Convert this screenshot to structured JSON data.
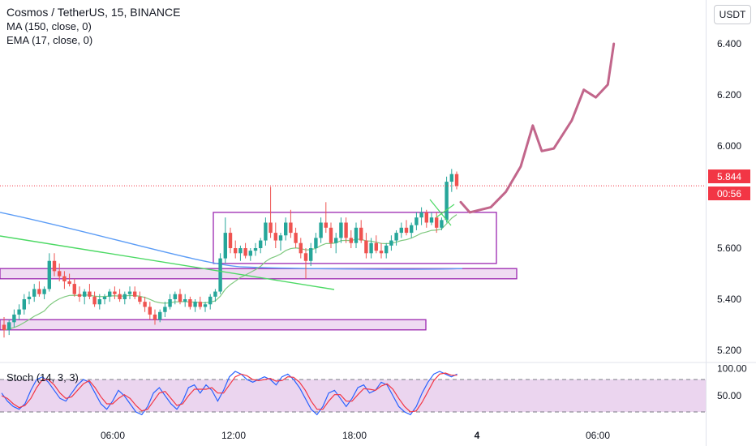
{
  "legend": {
    "title": "Cosmos / TetherUS, 15, BINANCE",
    "ma": "MA (150, close, 0)",
    "ema": "EMA (17, close, 0)",
    "stoch": "Stoch (14, 3, 3)"
  },
  "currency_badge": "USDT",
  "last_price": "5.844",
  "countdown": "00:56",
  "colors": {
    "up": "#26a69a",
    "down": "#ef5350",
    "ma": "#5b9cf6",
    "ema": "#7fc97f",
    "box": "#9c27b0",
    "forecast": "#c2668b",
    "trend": "#4cd964",
    "stoch_k": "#2962ff",
    "stoch_d": "#f23645",
    "stoch_band": "#e1bee7",
    "price_line": "#f23645"
  },
  "chart_data": {
    "type": "candlestick",
    "price_axis": {
      "ticks": [
        "6.400",
        "6.200",
        "6.000",
        "5.800",
        "5.600",
        "5.400",
        "5.200"
      ],
      "ylim": [
        5.13,
        6.54
      ]
    },
    "time_axis": {
      "ticks": [
        "06:00",
        "12:00",
        "18:00",
        "4",
        "06:00"
      ]
    },
    "last_price": 5.844,
    "candles": [
      [
        5.3,
        5.33,
        5.25,
        5.28
      ],
      [
        5.28,
        5.32,
        5.26,
        5.31
      ],
      [
        5.31,
        5.36,
        5.29,
        5.34
      ],
      [
        5.34,
        5.38,
        5.32,
        5.36
      ],
      [
        5.36,
        5.42,
        5.34,
        5.4
      ],
      [
        5.4,
        5.43,
        5.38,
        5.41
      ],
      [
        5.41,
        5.46,
        5.39,
        5.44
      ],
      [
        5.44,
        5.47,
        5.41,
        5.42
      ],
      [
        5.42,
        5.45,
        5.4,
        5.44
      ],
      [
        5.44,
        5.58,
        5.43,
        5.55
      ],
      [
        5.55,
        5.58,
        5.49,
        5.51
      ],
      [
        5.51,
        5.54,
        5.47,
        5.49
      ],
      [
        5.49,
        5.51,
        5.44,
        5.47
      ],
      [
        5.47,
        5.5,
        5.45,
        5.46
      ],
      [
        5.46,
        5.48,
        5.41,
        5.42
      ],
      [
        5.42,
        5.45,
        5.39,
        5.41
      ],
      [
        5.41,
        5.44,
        5.38,
        5.43
      ],
      [
        5.43,
        5.46,
        5.4,
        5.41
      ],
      [
        5.41,
        5.43,
        5.37,
        5.38
      ],
      [
        5.38,
        5.42,
        5.36,
        5.4
      ],
      [
        5.4,
        5.42,
        5.38,
        5.41
      ],
      [
        5.41,
        5.44,
        5.39,
        5.43
      ],
      [
        5.43,
        5.45,
        5.4,
        5.42
      ],
      [
        5.42,
        5.44,
        5.39,
        5.4
      ],
      [
        5.4,
        5.43,
        5.38,
        5.42
      ],
      [
        5.42,
        5.45,
        5.4,
        5.43
      ],
      [
        5.43,
        5.45,
        5.4,
        5.41
      ],
      [
        5.41,
        5.43,
        5.38,
        5.39
      ],
      [
        5.39,
        5.41,
        5.35,
        5.37
      ],
      [
        5.37,
        5.39,
        5.32,
        5.34
      ],
      [
        5.34,
        5.36,
        5.3,
        5.32
      ],
      [
        5.32,
        5.36,
        5.31,
        5.35
      ],
      [
        5.35,
        5.39,
        5.33,
        5.37
      ],
      [
        5.37,
        5.42,
        5.36,
        5.4
      ],
      [
        5.4,
        5.43,
        5.38,
        5.42
      ],
      [
        5.42,
        5.44,
        5.38,
        5.39
      ],
      [
        5.39,
        5.42,
        5.37,
        5.4
      ],
      [
        5.4,
        5.41,
        5.36,
        5.37
      ],
      [
        5.37,
        5.4,
        5.35,
        5.39
      ],
      [
        5.39,
        5.41,
        5.36,
        5.37
      ],
      [
        5.37,
        5.39,
        5.35,
        5.38
      ],
      [
        5.38,
        5.42,
        5.36,
        5.41
      ],
      [
        5.41,
        5.44,
        5.39,
        5.43
      ],
      [
        5.43,
        5.58,
        5.42,
        5.56
      ],
      [
        5.56,
        5.72,
        5.54,
        5.66
      ],
      [
        5.66,
        5.68,
        5.58,
        5.6
      ],
      [
        5.6,
        5.63,
        5.56,
        5.58
      ],
      [
        5.58,
        5.61,
        5.55,
        5.6
      ],
      [
        5.6,
        5.62,
        5.56,
        5.57
      ],
      [
        5.57,
        5.6,
        5.55,
        5.59
      ],
      [
        5.59,
        5.62,
        5.57,
        5.6
      ],
      [
        5.6,
        5.64,
        5.58,
        5.63
      ],
      [
        5.63,
        5.72,
        5.61,
        5.7
      ],
      [
        5.7,
        5.84,
        5.64,
        5.66
      ],
      [
        5.66,
        5.7,
        5.6,
        5.63
      ],
      [
        5.63,
        5.66,
        5.59,
        5.65
      ],
      [
        5.65,
        5.72,
        5.63,
        5.7
      ],
      [
        5.7,
        5.75,
        5.64,
        5.66
      ],
      [
        5.66,
        5.68,
        5.6,
        5.62
      ],
      [
        5.62,
        5.64,
        5.56,
        5.58
      ],
      [
        5.58,
        5.6,
        5.48,
        5.55
      ],
      [
        5.55,
        5.62,
        5.53,
        5.6
      ],
      [
        5.6,
        5.66,
        5.58,
        5.64
      ],
      [
        5.64,
        5.72,
        5.62,
        5.7
      ],
      [
        5.7,
        5.78,
        5.66,
        5.68
      ],
      [
        5.68,
        5.7,
        5.6,
        5.62
      ],
      [
        5.62,
        5.66,
        5.58,
        5.64
      ],
      [
        5.64,
        5.72,
        5.62,
        5.7
      ],
      [
        5.7,
        5.72,
        5.62,
        5.64
      ],
      [
        5.64,
        5.67,
        5.6,
        5.62
      ],
      [
        5.62,
        5.7,
        5.6,
        5.68
      ],
      [
        5.68,
        5.71,
        5.62,
        5.63
      ],
      [
        5.63,
        5.66,
        5.56,
        5.58
      ],
      [
        5.58,
        5.64,
        5.56,
        5.62
      ],
      [
        5.62,
        5.65,
        5.58,
        5.59
      ],
      [
        5.59,
        5.62,
        5.56,
        5.58
      ],
      [
        5.58,
        5.62,
        5.56,
        5.61
      ],
      [
        5.61,
        5.65,
        5.59,
        5.63
      ],
      [
        5.63,
        5.67,
        5.61,
        5.66
      ],
      [
        5.66,
        5.7,
        5.64,
        5.68
      ],
      [
        5.68,
        5.71,
        5.65,
        5.66
      ],
      [
        5.66,
        5.7,
        5.64,
        5.69
      ],
      [
        5.69,
        5.74,
        5.67,
        5.72
      ],
      [
        5.72,
        5.76,
        5.69,
        5.74
      ],
      [
        5.74,
        5.75,
        5.68,
        5.7
      ],
      [
        5.7,
        5.74,
        5.69,
        5.72
      ],
      [
        5.72,
        5.74,
        5.66,
        5.68
      ],
      [
        5.68,
        5.72,
        5.67,
        5.71
      ],
      [
        5.71,
        5.88,
        5.7,
        5.86
      ],
      [
        5.86,
        5.91,
        5.82,
        5.89
      ],
      [
        5.89,
        5.9,
        5.83,
        5.844
      ]
    ],
    "ma150": {
      "start": 5.74,
      "end": 5.52
    },
    "forecast_path": [
      [
        5.78,
        0
      ],
      [
        5.74,
        3
      ],
      [
        5.76,
        10
      ],
      [
        5.82,
        15
      ],
      [
        5.92,
        20
      ],
      [
        6.08,
        24
      ],
      [
        5.98,
        27
      ],
      [
        5.99,
        31
      ],
      [
        6.1,
        37
      ],
      [
        6.22,
        41
      ],
      [
        6.19,
        45
      ],
      [
        6.24,
        49
      ],
      [
        6.4,
        51
      ]
    ],
    "zones": [
      {
        "top": 5.74,
        "bottom": 5.54
      },
      {
        "top": 5.52,
        "bottom": 5.48
      },
      {
        "top": 5.32,
        "bottom": 5.28
      }
    ],
    "stoch": {
      "levels": [
        80,
        20
      ],
      "ticks": [
        "100.00",
        "50.00"
      ],
      "k": [
        55,
        40,
        30,
        25,
        35,
        60,
        80,
        85,
        75,
        60,
        45,
        40,
        55,
        70,
        80,
        75,
        55,
        35,
        25,
        40,
        60,
        50,
        35,
        20,
        15,
        30,
        55,
        65,
        50,
        35,
        25,
        40,
        65,
        70,
        55,
        70,
        60,
        40,
        60,
        85,
        95,
        90,
        80,
        75,
        80,
        85,
        80,
        70,
        85,
        90,
        80,
        65,
        45,
        25,
        15,
        30,
        55,
        60,
        45,
        30,
        45,
        65,
        70,
        55,
        60,
        75,
        70,
        50,
        30,
        20,
        15,
        30,
        55,
        75,
        90,
        95,
        90,
        85,
        90
      ],
      "d": [
        50,
        45,
        35,
        28,
        32,
        45,
        65,
        80,
        80,
        70,
        55,
        45,
        48,
        60,
        72,
        78,
        65,
        48,
        35,
        35,
        45,
        52,
        45,
        32,
        22,
        25,
        40,
        55,
        58,
        45,
        32,
        35,
        50,
        62,
        62,
        62,
        65,
        55,
        55,
        70,
        85,
        90,
        87,
        80,
        78,
        80,
        82,
        77,
        78,
        85,
        84,
        75,
        60,
        40,
        25,
        25,
        40,
        52,
        52,
        40,
        40,
        52,
        63,
        62,
        60,
        68,
        72,
        62,
        45,
        30,
        20,
        22,
        38,
        58,
        78,
        90,
        92,
        88,
        88
      ]
    }
  }
}
